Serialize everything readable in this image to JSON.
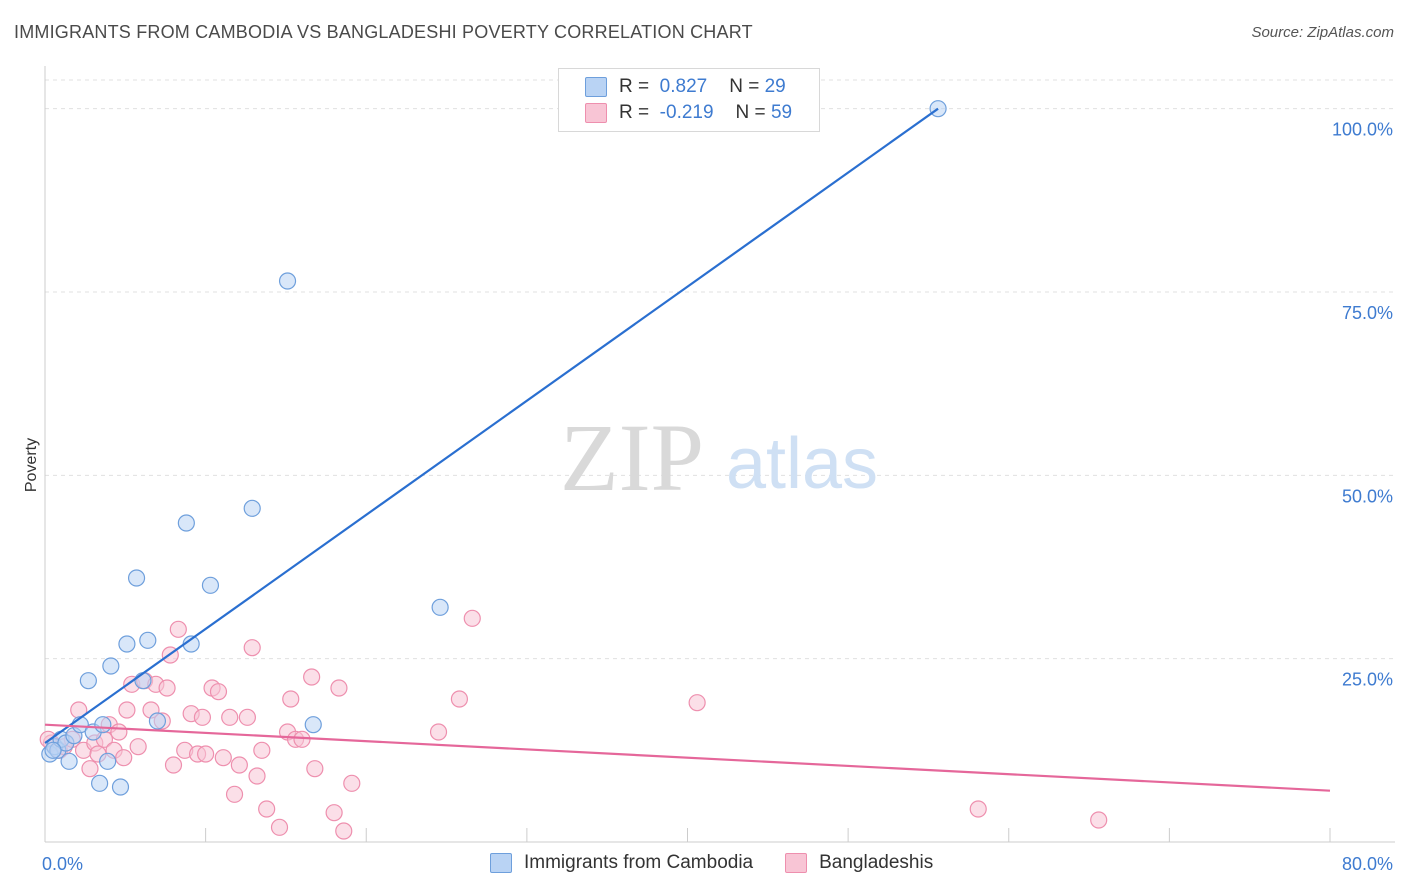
{
  "header": {
    "title": "IMMIGRANTS FROM CAMBODIA VS BANGLADESHI POVERTY CORRELATION CHART",
    "source": "Source: ZipAtlas.com"
  },
  "watermark": {
    "zip": "ZIP",
    "atlas": "atlas"
  },
  "colors": {
    "blue_fill": "#b9d3f4",
    "blue_stroke": "#6e9fdc",
    "blue_line": "#2a6fd0",
    "pink_fill": "#f8c5d5",
    "pink_stroke": "#ee8fae",
    "pink_line": "#e5679a",
    "axis_text": "#3e7bd0",
    "grid": "#e0e0e0"
  },
  "legend": {
    "rows": [
      {
        "r_label": "R =",
        "r_value": "0.827",
        "n_label": "N =",
        "n_value": "29"
      },
      {
        "r_label": "R =",
        "r_value": "-0.219",
        "n_label": "N =",
        "n_value": "59"
      }
    ],
    "bottom": [
      "Immigrants from Cambodia",
      "Bangladeshis"
    ]
  },
  "chart_data": {
    "type": "scatter",
    "title": "IMMIGRANTS FROM CAMBODIA VS BANGLADESHI POVERTY CORRELATION CHART",
    "xlabel": "",
    "ylabel": "Poverty",
    "xlim": [
      0,
      80
    ],
    "ylim": [
      0,
      105
    ],
    "x_tick_labels": [
      "0.0%",
      "80.0%"
    ],
    "y_ticks": [
      25,
      50,
      75,
      100
    ],
    "y_tick_labels": [
      "25.0%",
      "50.0%",
      "75.0%",
      "100.0%"
    ],
    "grid": true,
    "series": [
      {
        "name": "Immigrants from Cambodia",
        "color": "blue",
        "r": 0.827,
        "n": 29,
        "trend": [
          [
            0,
            13.5
          ],
          [
            55.6,
            100
          ]
        ],
        "points": [
          [
            0.3,
            12.0
          ],
          [
            0.6,
            13.0
          ],
          [
            0.8,
            12.5
          ],
          [
            1.0,
            14.0
          ],
          [
            1.3,
            13.5
          ],
          [
            1.5,
            11.0
          ],
          [
            1.8,
            14.5
          ],
          [
            2.2,
            16.0
          ],
          [
            2.7,
            22.0
          ],
          [
            3.0,
            15.0
          ],
          [
            3.4,
            8.0
          ],
          [
            3.6,
            16.0
          ],
          [
            3.9,
            11.0
          ],
          [
            4.1,
            24.0
          ],
          [
            4.7,
            7.5
          ],
          [
            5.1,
            27.0
          ],
          [
            5.7,
            36.0
          ],
          [
            6.1,
            22.0
          ],
          [
            6.4,
            27.5
          ],
          [
            7.0,
            16.5
          ],
          [
            8.8,
            43.5
          ],
          [
            9.1,
            27.0
          ],
          [
            10.3,
            35.0
          ],
          [
            12.9,
            45.5
          ],
          [
            15.1,
            76.5
          ],
          [
            16.7,
            16.0
          ],
          [
            24.6,
            32.0
          ],
          [
            55.6,
            100.0
          ],
          [
            0.5,
            12.5
          ]
        ]
      },
      {
        "name": "Bangladeshis",
        "color": "pink",
        "r": -0.219,
        "n": 59,
        "trend": [
          [
            0,
            16.0
          ],
          [
            80,
            7.0
          ]
        ],
        "points": [
          [
            0.4,
            13.5
          ],
          [
            0.9,
            12.5
          ],
          [
            1.2,
            13.0
          ],
          [
            1.7,
            14.0
          ],
          [
            2.1,
            18.0
          ],
          [
            2.4,
            12.5
          ],
          [
            2.8,
            10.0
          ],
          [
            3.1,
            13.5
          ],
          [
            3.3,
            12.0
          ],
          [
            3.7,
            14.0
          ],
          [
            4.0,
            16.0
          ],
          [
            4.3,
            12.5
          ],
          [
            4.6,
            15.0
          ],
          [
            4.9,
            11.5
          ],
          [
            5.1,
            18.0
          ],
          [
            5.4,
            21.5
          ],
          [
            5.8,
            13.0
          ],
          [
            6.2,
            22.0
          ],
          [
            6.6,
            18.0
          ],
          [
            6.9,
            21.5
          ],
          [
            7.3,
            16.5
          ],
          [
            7.6,
            21.0
          ],
          [
            7.8,
            25.5
          ],
          [
            8.0,
            10.5
          ],
          [
            8.3,
            29.0
          ],
          [
            8.7,
            12.5
          ],
          [
            9.1,
            17.5
          ],
          [
            9.5,
            12.0
          ],
          [
            9.8,
            17.0
          ],
          [
            10.0,
            12.0
          ],
          [
            10.4,
            21.0
          ],
          [
            10.8,
            20.5
          ],
          [
            11.1,
            11.5
          ],
          [
            11.5,
            17.0
          ],
          [
            11.8,
            6.5
          ],
          [
            12.1,
            10.5
          ],
          [
            12.6,
            17.0
          ],
          [
            12.9,
            26.5
          ],
          [
            13.2,
            9.0
          ],
          [
            13.5,
            12.5
          ],
          [
            13.8,
            4.5
          ],
          [
            14.6,
            2.0
          ],
          [
            15.1,
            15.0
          ],
          [
            15.3,
            19.5
          ],
          [
            15.6,
            14.0
          ],
          [
            16.0,
            14.0
          ],
          [
            16.6,
            22.5
          ],
          [
            16.8,
            10.0
          ],
          [
            18.0,
            4.0
          ],
          [
            18.3,
            21.0
          ],
          [
            18.6,
            1.5
          ],
          [
            19.1,
            8.0
          ],
          [
            24.5,
            15.0
          ],
          [
            25.8,
            19.5
          ],
          [
            26.6,
            30.5
          ],
          [
            40.6,
            19.0
          ],
          [
            58.1,
            4.5
          ],
          [
            65.6,
            3.0
          ],
          [
            0.2,
            14.0
          ]
        ]
      }
    ]
  }
}
